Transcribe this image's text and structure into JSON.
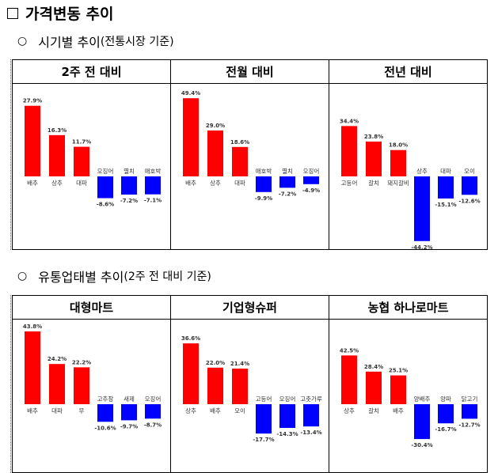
{
  "heading": "가격변동 추이",
  "section1": {
    "title": "시기별 추이",
    "note": "(전통시장 기준)"
  },
  "section2": {
    "title": "유통업태별 추이",
    "note": "(2주 전 대비 기준)"
  },
  "colors": {
    "up": "#ff0000",
    "down": "#0000ff"
  },
  "chart_data": [
    {
      "type": "bar",
      "title": "2주 전 대비",
      "categories": [
        "배추",
        "상추",
        "대파",
        "오징어",
        "멸치",
        "애호박"
      ],
      "values": [
        27.9,
        16.3,
        11.7,
        -8.6,
        -7.2,
        -7.1
      ],
      "labels": [
        "27.9%",
        "16.3%",
        "11.7%",
        "-8.6%",
        "-7.2%",
        "-7.1%"
      ]
    },
    {
      "type": "bar",
      "title": "전월 대비",
      "categories": [
        "배추",
        "상추",
        "대파",
        "애호박",
        "멸치",
        "오징어"
      ],
      "values": [
        49.4,
        29.0,
        18.6,
        -9.9,
        -7.2,
        -4.9
      ],
      "labels": [
        "49.4%",
        "29.0%",
        "18.6%",
        "-9.9%",
        "-7.2%",
        "-4.9%"
      ]
    },
    {
      "type": "bar",
      "title": "전년 대비",
      "categories": [
        "고등어",
        "갈치",
        "돼지갈비",
        "상추",
        "대파",
        "오이"
      ],
      "values": [
        34.4,
        23.8,
        18.0,
        -44.2,
        -15.1,
        -12.6
      ],
      "labels": [
        "34.4%",
        "23.8%",
        "18.0%",
        "-44.2%",
        "-15.1%",
        "-12.6%"
      ]
    },
    {
      "type": "bar",
      "title": "대형마트",
      "categories": [
        "배추",
        "대파",
        "무",
        "고추장",
        "새제",
        "오징어"
      ],
      "values": [
        43.8,
        24.2,
        22.2,
        -10.6,
        -9.7,
        -8.7
      ],
      "labels": [
        "43.8%",
        "24.2%",
        "22.2%",
        "-10.6%",
        "-9.7%",
        "-8.7%"
      ]
    },
    {
      "type": "bar",
      "title": "기업형슈퍼",
      "categories": [
        "상추",
        "배추",
        "오이",
        "고등어",
        "오징어",
        "고춧가루"
      ],
      "values": [
        36.6,
        22.0,
        21.4,
        -17.7,
        -14.3,
        -13.4
      ],
      "labels": [
        "36.6%",
        "22.0%",
        "21.4%",
        "-17.7%",
        "-14.3%",
        "-13.4%"
      ]
    },
    {
      "type": "bar",
      "title": "농협 하나로마트",
      "categories": [
        "상추",
        "갈치",
        "배추",
        "양배추",
        "양파",
        "닭고기"
      ],
      "values": [
        42.5,
        28.4,
        25.1,
        -30.4,
        -16.7,
        -12.7
      ],
      "labels": [
        "42.5%",
        "28.4%",
        "25.1%",
        "-30.4%",
        "-16.7%",
        "-12.7%"
      ]
    }
  ]
}
